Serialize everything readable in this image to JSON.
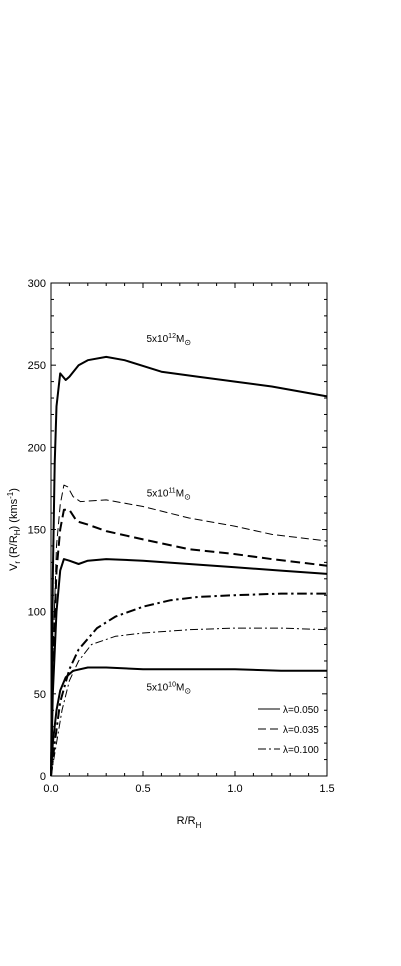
{
  "chart_data": {
    "type": "line",
    "xlabel": "R/R",
    "xlabel_sub": "H",
    "ylabel": "V (R/R ) (kms )",
    "ylabel_parts": [
      "V",
      "r",
      " (R/R",
      "H",
      ") (kms",
      "-1",
      ")"
    ],
    "xlim": [
      0.0,
      1.5
    ],
    "ylim": [
      0,
      300
    ],
    "x_ticks": [
      0.0,
      0.5,
      1.0,
      1.5
    ],
    "x_tick_labels": [
      "0.0",
      "0.5",
      "1.0",
      "1.5"
    ],
    "y_ticks": [
      0,
      50,
      100,
      150,
      200,
      250,
      300
    ],
    "y_tick_labels": [
      "0",
      "50",
      "100",
      "150",
      "200",
      "250",
      "300"
    ],
    "grid": false,
    "legend_position": "bottom-right",
    "legend": [
      {
        "label": "λ=0.050",
        "style": "solid"
      },
      {
        "label": "λ=0.035",
        "style": "dashed"
      },
      {
        "label": "λ=0.100",
        "style": "dashdot"
      }
    ],
    "annotations": [
      {
        "text": "5x10",
        "sup": "12",
        "unit": "M",
        "sub": "⊙",
        "x": 0.64,
        "y": 264
      },
      {
        "text": "5x10",
        "sup": "11",
        "unit": "M",
        "sub": "⊙",
        "x": 0.64,
        "y": 170
      },
      {
        "text": "5x10",
        "sup": "10",
        "unit": "M",
        "sub": "⊙",
        "x": 0.64,
        "y": 52
      }
    ],
    "series": [
      {
        "style": "solid",
        "width": 2,
        "points": [
          [
            0.0,
            0
          ],
          [
            0.01,
            120
          ],
          [
            0.02,
            190
          ],
          [
            0.03,
            225
          ],
          [
            0.05,
            245
          ],
          [
            0.08,
            241
          ],
          [
            0.1,
            243
          ],
          [
            0.15,
            250
          ],
          [
            0.2,
            253
          ],
          [
            0.3,
            255
          ],
          [
            0.4,
            253
          ],
          [
            0.6,
            246
          ],
          [
            0.8,
            243
          ],
          [
            1.0,
            240
          ],
          [
            1.2,
            237
          ],
          [
            1.5,
            231
          ]
        ]
      },
      {
        "style": "dashed",
        "width": 1,
        "points": [
          [
            0.0,
            0
          ],
          [
            0.01,
            70
          ],
          [
            0.03,
            140
          ],
          [
            0.05,
            165
          ],
          [
            0.07,
            177
          ],
          [
            0.09,
            176
          ],
          [
            0.12,
            170
          ],
          [
            0.16,
            167
          ],
          [
            0.3,
            168
          ],
          [
            0.5,
            164
          ],
          [
            0.75,
            157
          ],
          [
            1.0,
            152
          ],
          [
            1.2,
            147
          ],
          [
            1.5,
            143
          ]
        ]
      },
      {
        "style": "dashed",
        "width": 2,
        "points": [
          [
            0.0,
            0
          ],
          [
            0.01,
            65
          ],
          [
            0.03,
            125
          ],
          [
            0.05,
            150
          ],
          [
            0.07,
            162
          ],
          [
            0.1,
            162
          ],
          [
            0.14,
            155
          ],
          [
            0.2,
            153
          ],
          [
            0.3,
            149
          ],
          [
            0.5,
            144
          ],
          [
            0.75,
            138
          ],
          [
            1.0,
            135
          ],
          [
            1.2,
            132
          ],
          [
            1.5,
            128
          ]
        ]
      },
      {
        "style": "solid",
        "width": 2,
        "points": [
          [
            0.0,
            0
          ],
          [
            0.01,
            50
          ],
          [
            0.03,
            100
          ],
          [
            0.05,
            125
          ],
          [
            0.07,
            132
          ],
          [
            0.1,
            131
          ],
          [
            0.15,
            129
          ],
          [
            0.2,
            131
          ],
          [
            0.3,
            132
          ],
          [
            0.5,
            131
          ],
          [
            0.75,
            129
          ],
          [
            1.0,
            127
          ],
          [
            1.25,
            125
          ],
          [
            1.5,
            123
          ]
        ]
      },
      {
        "style": "dashdot",
        "width": 2,
        "points": [
          [
            0.0,
            0
          ],
          [
            0.02,
            20
          ],
          [
            0.05,
            45
          ],
          [
            0.1,
            65
          ],
          [
            0.15,
            77
          ],
          [
            0.25,
            90
          ],
          [
            0.35,
            97
          ],
          [
            0.5,
            103
          ],
          [
            0.65,
            107
          ],
          [
            0.8,
            109
          ],
          [
            1.0,
            110
          ],
          [
            1.25,
            111
          ],
          [
            1.5,
            111
          ]
        ]
      },
      {
        "style": "dashdot",
        "width": 1,
        "points": [
          [
            0.0,
            0
          ],
          [
            0.03,
            20
          ],
          [
            0.06,
            40
          ],
          [
            0.1,
            58
          ],
          [
            0.15,
            70
          ],
          [
            0.22,
            80
          ],
          [
            0.35,
            85
          ],
          [
            0.5,
            87
          ],
          [
            0.75,
            89
          ],
          [
            1.0,
            90
          ],
          [
            1.25,
            90
          ],
          [
            1.5,
            89
          ]
        ]
      },
      {
        "style": "solid",
        "width": 2,
        "points": [
          [
            0.0,
            0
          ],
          [
            0.01,
            20
          ],
          [
            0.03,
            40
          ],
          [
            0.05,
            52
          ],
          [
            0.08,
            60
          ],
          [
            0.12,
            64
          ],
          [
            0.2,
            66
          ],
          [
            0.3,
            66
          ],
          [
            0.5,
            65
          ],
          [
            0.75,
            65
          ],
          [
            1.0,
            65
          ],
          [
            1.25,
            64
          ],
          [
            1.5,
            64
          ]
        ]
      }
    ]
  }
}
